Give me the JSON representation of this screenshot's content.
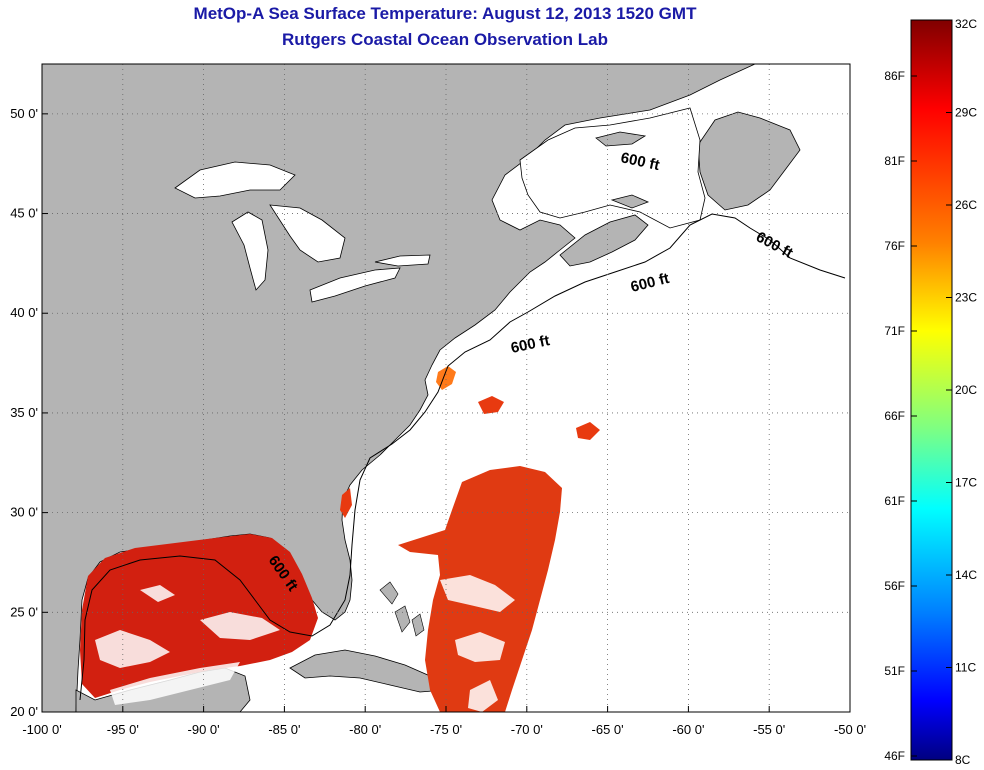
{
  "title": "MetOp-A Sea Surface Temperature:  August 12, 2013 1520 GMT",
  "subtitle": "Rutgers Coastal Ocean Observation Lab",
  "colors": {
    "land": "#b4b4b4",
    "title": "#1a1aa6",
    "grid": "#666666"
  },
  "map": {
    "lon_range": [
      -100,
      -50
    ],
    "lat_range": [
      20,
      52.5
    ],
    "x_ticks": [
      "-100 0'",
      "-95 0'",
      "-90 0'",
      "-85 0'",
      "-80 0'",
      "-75 0'",
      "-70 0'",
      "-65 0'",
      "-60 0'",
      "-55 0'",
      "-50 0'"
    ],
    "x_tick_values": [
      -100,
      -95,
      -90,
      -85,
      -80,
      -75,
      -70,
      -65,
      -60,
      -55,
      -50
    ],
    "y_ticks": [
      "50 0'",
      "45 0'",
      "40 0'",
      "35 0'",
      "30 0'",
      "25 0'",
      "20 0'"
    ],
    "y_tick_values": [
      50,
      45,
      40,
      35,
      30,
      25,
      20
    ],
    "contour_label": "600 ft",
    "contour_label_count": 5
  },
  "colorbar": {
    "celsius_labels": [
      "32C",
      "29C",
      "26C",
      "23C",
      "20C",
      "17C",
      "14C",
      "11C",
      "8C"
    ],
    "fahrenheit_labels": [
      "86F",
      "81F",
      "76F",
      "71F",
      "66F",
      "61F",
      "56F",
      "51F",
      "46F"
    ]
  }
}
